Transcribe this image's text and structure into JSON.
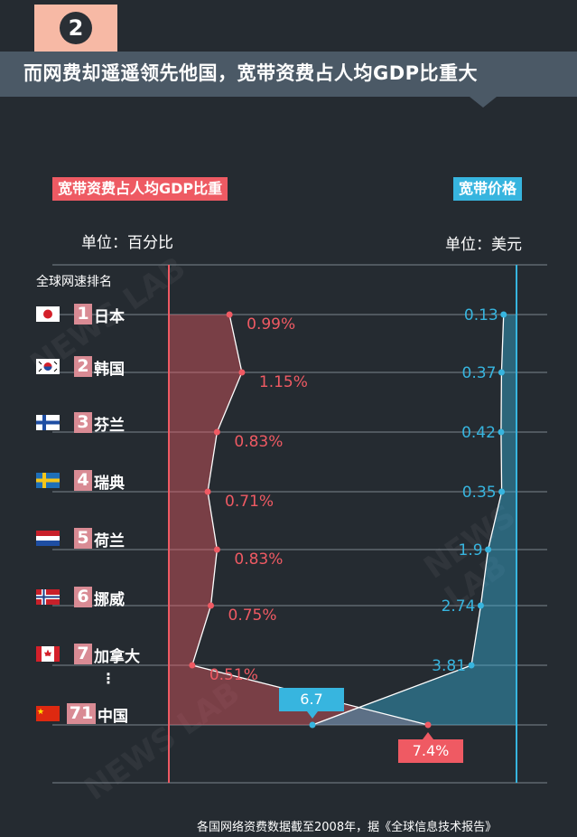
{
  "section_number": "2",
  "headline": "而网费却遥遥领先他国，宽带资费占人均GDP比重大",
  "left_tag": "宽带资费占人均GDP比重",
  "right_tag": "宽带价格",
  "left_unit": "单位：百分比",
  "right_unit": "单位：美元",
  "rank_title": "全球网速排名",
  "ellipsis": "⋮",
  "watermark": "NEWS LAB",
  "footnote": "各国网络资费数据截至2008年，据《全球信息技术报告》",
  "colors": {
    "gdp_series": "#ef5a63",
    "price_series": "#37b5df",
    "background": "#252b31"
  },
  "countries": [
    {
      "rank": "1",
      "name": "日本",
      "flag": "japan-flag-icon"
    },
    {
      "rank": "2",
      "name": "韩国",
      "flag": "korea-flag-icon"
    },
    {
      "rank": "3",
      "name": "芬兰",
      "flag": "finland-flag-icon"
    },
    {
      "rank": "4",
      "name": "瑞典",
      "flag": "sweden-flag-icon"
    },
    {
      "rank": "5",
      "name": "荷兰",
      "flag": "netherlands-flag-icon"
    },
    {
      "rank": "6",
      "name": "挪威",
      "flag": "norway-flag-icon"
    },
    {
      "rank": "7",
      "name": "加拿大",
      "flag": "canada-flag-icon"
    },
    {
      "rank": "71",
      "name": "中国",
      "flag": "china-flag-icon"
    }
  ],
  "chart_data": {
    "type": "line",
    "categories": [
      "日本",
      "韩国",
      "芬兰",
      "瑞典",
      "荷兰",
      "挪威",
      "加拿大",
      "中国"
    ],
    "series": [
      {
        "name": "宽带资费占人均GDP比重",
        "unit": "%",
        "values": [
          0.99,
          1.15,
          0.83,
          0.71,
          0.83,
          0.75,
          0.51,
          7.4
        ],
        "labels": [
          "0.99%",
          "1.15%",
          "0.83%",
          "0.71%",
          "0.83%",
          "0.75%",
          "0.51%",
          "7.4%"
        ]
      },
      {
        "name": "宽带价格",
        "unit": "美元",
        "values": [
          0.13,
          0.37,
          0.42,
          0.35,
          1.9,
          2.74,
          3.81,
          6.7
        ],
        "labels": [
          "0.13",
          "0.37",
          "0.42",
          "0.35",
          "1.9",
          "2.74",
          "3.81",
          "6.7"
        ]
      }
    ],
    "grid": true,
    "legend": "top"
  }
}
